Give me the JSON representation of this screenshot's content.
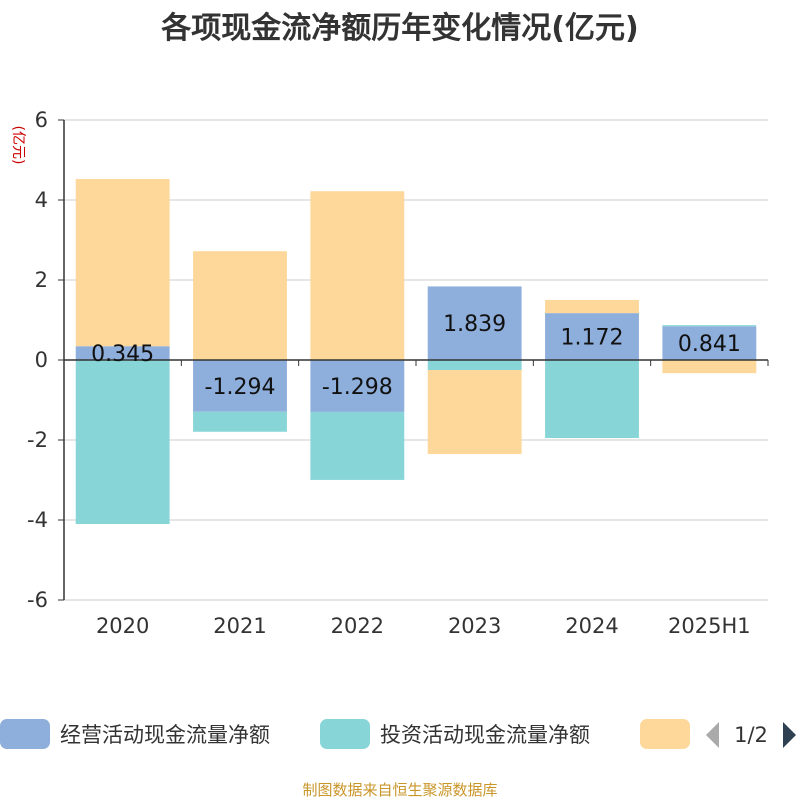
{
  "chart_data": {
    "type": "bar",
    "stacked": true,
    "title": "各项现金流净额历年变化情况(亿元)",
    "ylabel": "(亿元)",
    "categories": [
      "2020",
      "2021",
      "2022",
      "2023",
      "2024",
      "2025H1"
    ],
    "ylim": [
      -6,
      6
    ],
    "yticks": [
      6,
      4,
      2,
      0,
      -2,
      -4,
      -6
    ],
    "grid": true,
    "legend_position": "bottom",
    "series": [
      {
        "name": "经营活动现金流量净额",
        "color": "#8eaedb",
        "values": [
          0.345,
          -1.294,
          -1.298,
          1.839,
          1.172,
          0.841
        ]
      },
      {
        "name": "投资活动现金流量净额",
        "color": "#88d5d8",
        "values": [
          -4.1,
          -0.5,
          -1.7,
          -0.25,
          -1.95,
          0.03
        ]
      },
      {
        "name": "",
        "color": "#fdd89a",
        "values": [
          4.18,
          2.72,
          4.22,
          -2.1,
          0.33,
          -0.33
        ]
      }
    ],
    "data_labels": [
      "0.345",
      "-1.294",
      "-1.298",
      "1.839",
      "1.172",
      "0.841"
    ]
  },
  "legend": {
    "pager": "1/2"
  },
  "source": "制图数据来自恒生聚源数据库"
}
